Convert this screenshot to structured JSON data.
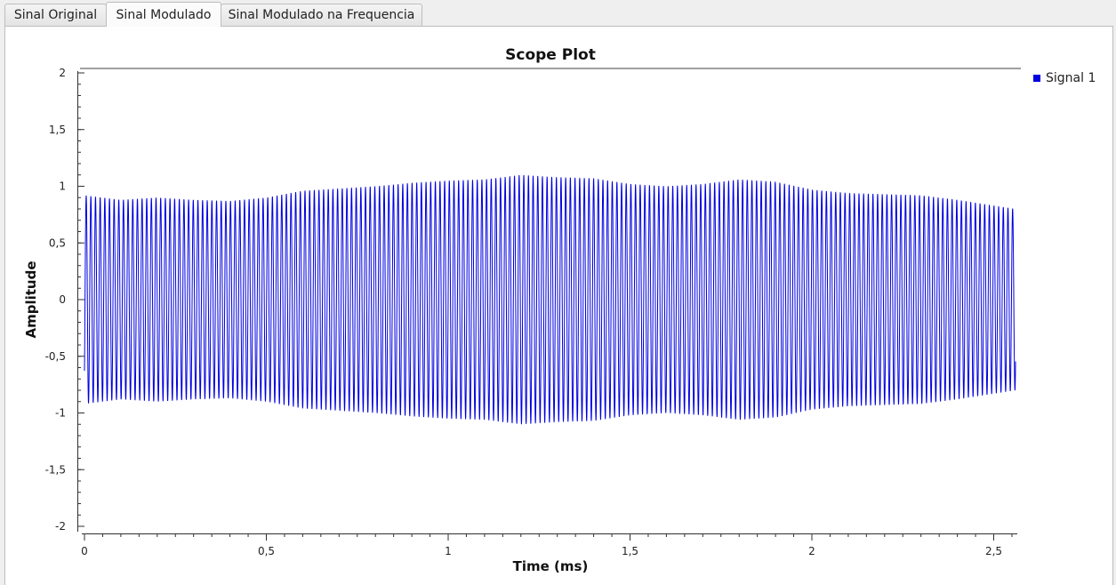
{
  "tabs": [
    {
      "label": "Sinal Original",
      "active": false
    },
    {
      "label": "Sinal Modulado",
      "active": true
    },
    {
      "label": "Sinal Modulado na Frequencia",
      "active": false
    }
  ],
  "plot": {
    "title": "Scope Plot",
    "legend": [
      {
        "name": "Signal 1",
        "color": "#0000e0"
      }
    ]
  },
  "chart_data": {
    "type": "line",
    "title": "Scope Plot",
    "xlabel": "Time (ms)",
    "ylabel": "Amplitude",
    "xlim": [
      0,
      2.56
    ],
    "ylim": [
      -2,
      2
    ],
    "x_ticks": [
      "0",
      "0,5",
      "1",
      "1,5",
      "2",
      "2,5"
    ],
    "x_tick_values": [
      0,
      0.5,
      1,
      1.5,
      2,
      2.5
    ],
    "y_ticks": [
      "2",
      "1,5",
      "1",
      "0,5",
      "0",
      "-0,5",
      "-1",
      "-1,5",
      "-2"
    ],
    "y_tick_values": [
      2,
      1.5,
      1,
      0.5,
      0,
      -0.5,
      -1,
      -1.5,
      -2
    ],
    "grid": false,
    "legend_position": "top-right",
    "series": [
      {
        "name": "Signal 1",
        "color": "#0000e0",
        "carrier_cycles": 200,
        "envelope_time_ms": [
          0,
          0.1,
          0.2,
          0.3,
          0.4,
          0.5,
          0.6,
          0.7,
          0.8,
          0.9,
          1.0,
          1.1,
          1.2,
          1.3,
          1.4,
          1.5,
          1.6,
          1.7,
          1.8,
          1.9,
          2.0,
          2.1,
          2.2,
          2.3,
          2.4,
          2.5,
          2.56
        ],
        "envelope_amplitude": [
          0.92,
          0.88,
          0.9,
          0.88,
          0.87,
          0.9,
          0.96,
          0.98,
          1.0,
          1.03,
          1.05,
          1.06,
          1.1,
          1.08,
          1.07,
          1.02,
          1.0,
          1.02,
          1.06,
          1.04,
          0.97,
          0.94,
          0.93,
          0.92,
          0.88,
          0.83,
          0.8
        ]
      }
    ]
  }
}
